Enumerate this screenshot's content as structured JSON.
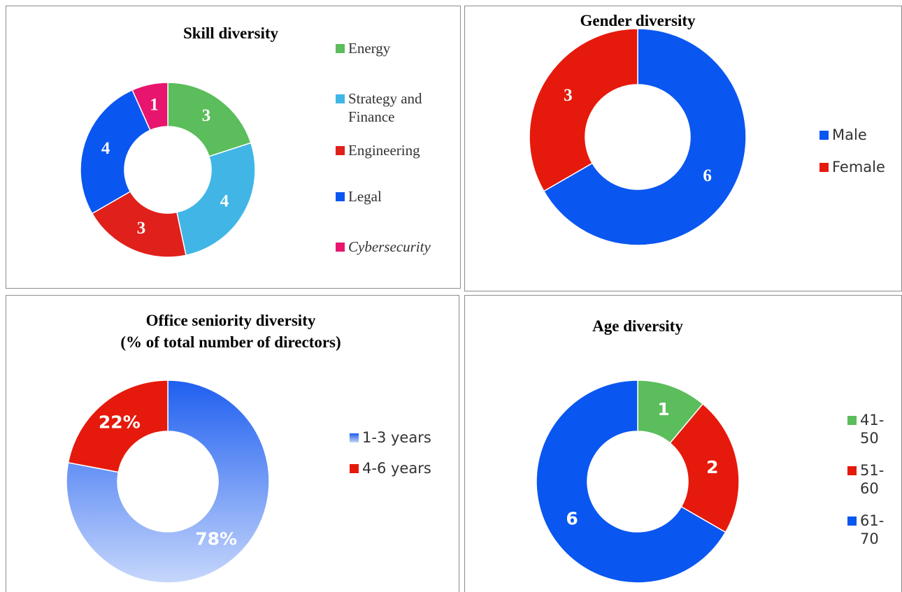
{
  "chart_data": [
    {
      "type": "donut",
      "title": "Skill diversity",
      "categories": [
        "Energy",
        "Strategy and Finance",
        "Engineering",
        "Legal",
        "Cybersecurity"
      ],
      "values": [
        3,
        4,
        3,
        4,
        1
      ],
      "colors": [
        "#5bbd5b",
        "#41b6e6",
        "#e0201b",
        "#0a56f0",
        "#e8156e"
      ]
    },
    {
      "type": "donut",
      "title": "Gender diversity",
      "categories": [
        "Male",
        "Female"
      ],
      "values": [
        6,
        3
      ],
      "colors": [
        "#0a56f0",
        "#e51a0c"
      ]
    },
    {
      "type": "donut",
      "title": "Office seniority diversity",
      "subtitle": "(% of total number of directors)",
      "categories": [
        "1-3 years",
        "4-6 years"
      ],
      "values": [
        78,
        22
      ],
      "value_labels": [
        "78%",
        "22%"
      ],
      "colors": [
        "#1f5ff0",
        "#e51a0c"
      ],
      "gradient": true
    },
    {
      "type": "donut",
      "title": "Age diversity",
      "categories": [
        "41-50",
        "51-60",
        "61-70"
      ],
      "values": [
        1,
        2,
        6
      ],
      "colors": [
        "#5bbd5b",
        "#e51a0c",
        "#0a56f0"
      ]
    }
  ]
}
